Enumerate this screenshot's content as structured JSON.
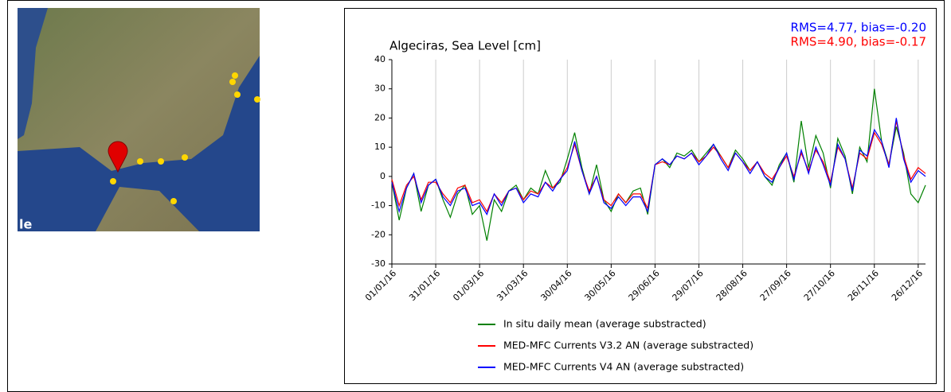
{
  "map": {
    "logo_text": "le"
  },
  "chart_data": {
    "type": "line",
    "title": "Algeciras, Sea Level [cm]",
    "annotations": [
      {
        "text": "RMS=4.77, bias=-0.20",
        "color": "#0000ff"
      },
      {
        "text": "RMS=4.90, bias=-0.17",
        "color": "#ff0000"
      }
    ],
    "x": [
      "01/01/16",
      "06/01/16",
      "11/01/16",
      "16/01/16",
      "21/01/16",
      "26/01/16",
      "31/01/16",
      "05/02/16",
      "10/02/16",
      "15/02/16",
      "20/02/16",
      "25/02/16",
      "01/03/16",
      "06/03/16",
      "11/03/16",
      "16/03/16",
      "21/03/16",
      "26/03/16",
      "31/03/16",
      "05/04/16",
      "10/04/16",
      "15/04/16",
      "20/04/16",
      "25/04/16",
      "30/04/16",
      "05/05/16",
      "10/05/16",
      "15/05/16",
      "20/05/16",
      "25/05/16",
      "30/05/16",
      "04/06/16",
      "09/06/16",
      "14/06/16",
      "19/06/16",
      "24/06/16",
      "29/06/16",
      "04/07/16",
      "09/07/16",
      "14/07/16",
      "19/07/16",
      "24/07/16",
      "29/07/16",
      "03/08/16",
      "08/08/16",
      "13/08/16",
      "18/08/16",
      "23/08/16",
      "28/08/16",
      "02/09/16",
      "07/09/16",
      "12/09/16",
      "17/09/16",
      "22/09/16",
      "27/09/16",
      "02/10/16",
      "07/10/16",
      "12/10/16",
      "17/10/16",
      "22/10/16",
      "27/10/16",
      "01/11/16",
      "06/11/16",
      "11/11/16",
      "16/11/16",
      "21/11/16",
      "26/11/16",
      "01/12/16",
      "06/12/16",
      "11/12/16",
      "16/12/16",
      "21/12/16",
      "26/12/16",
      "31/12/16"
    ],
    "series": [
      {
        "name": "In situ daily mean (average substracted)",
        "color": "#008000",
        "values": [
          -2,
          -15,
          -4,
          1,
          -12,
          -3,
          -1,
          -8,
          -14,
          -6,
          -3,
          -13,
          -10,
          -22,
          -8,
          -12,
          -5,
          -3,
          -8,
          -4,
          -6,
          2,
          -4,
          -2,
          6,
          15,
          3,
          -6,
          4,
          -8,
          -12,
          -6,
          -9,
          -5,
          -4,
          -13,
          4,
          6,
          3,
          8,
          7,
          9,
          5,
          8,
          11,
          7,
          3,
          9,
          6,
          2,
          5,
          0,
          -3,
          4,
          8,
          -2,
          19,
          3,
          14,
          8,
          -4,
          13,
          7,
          -6,
          10,
          5,
          30,
          12,
          4,
          17,
          8,
          -6,
          -9,
          -3
        ]
      },
      {
        "name": "MED-MFC Currents V3.2 AN (average substracted)",
        "color": "#ff0000",
        "values": [
          -1,
          -10,
          -3,
          0,
          -8,
          -2,
          -2,
          -6,
          -9,
          -4,
          -3,
          -9,
          -8,
          -12,
          -6,
          -9,
          -5,
          -4,
          -8,
          -5,
          -6,
          -2,
          -4,
          -1,
          3,
          11,
          2,
          -5,
          0,
          -8,
          -10,
          -6,
          -9,
          -6,
          -6,
          -11,
          4,
          5,
          4,
          7,
          6,
          8,
          5,
          7,
          10,
          7,
          3,
          8,
          5,
          2,
          5,
          1,
          -1,
          3,
          7,
          0,
          8,
          2,
          9,
          5,
          -2,
          10,
          6,
          -4,
          8,
          6,
          15,
          11,
          4,
          19,
          7,
          -1,
          3,
          1
        ]
      },
      {
        "name": "MED-MFC Currents V4 AN (average substracted)",
        "color": "#0000ff",
        "values": [
          -2,
          -12,
          -4,
          1,
          -9,
          -3,
          -1,
          -7,
          -10,
          -5,
          -4,
          -10,
          -9,
          -13,
          -6,
          -10,
          -5,
          -4,
          -9,
          -6,
          -7,
          -2,
          -5,
          -1,
          2,
          12,
          2,
          -6,
          0,
          -9,
          -11,
          -7,
          -10,
          -7,
          -7,
          -12,
          4,
          6,
          4,
          7,
          6,
          8,
          4,
          7,
          11,
          6,
          2,
          8,
          5,
          1,
          5,
          0,
          -2,
          3,
          8,
          -1,
          9,
          1,
          10,
          4,
          -3,
          11,
          6,
          -5,
          9,
          7,
          16,
          12,
          3,
          20,
          6,
          -2,
          2,
          0
        ]
      }
    ],
    "xlim": [
      "01/01/16",
      "31/12/16"
    ],
    "xticks": [
      "01/01/16",
      "31/01/16",
      "01/03/16",
      "31/03/16",
      "30/04/16",
      "30/05/16",
      "29/06/16",
      "29/07/16",
      "28/08/16",
      "27/09/16",
      "27/10/16",
      "26/11/16",
      "26/12/16"
    ],
    "ylim": [
      -30,
      40
    ],
    "yticks": [
      -30,
      -20,
      -10,
      0,
      10,
      20,
      30,
      40
    ],
    "grid": "x"
  }
}
